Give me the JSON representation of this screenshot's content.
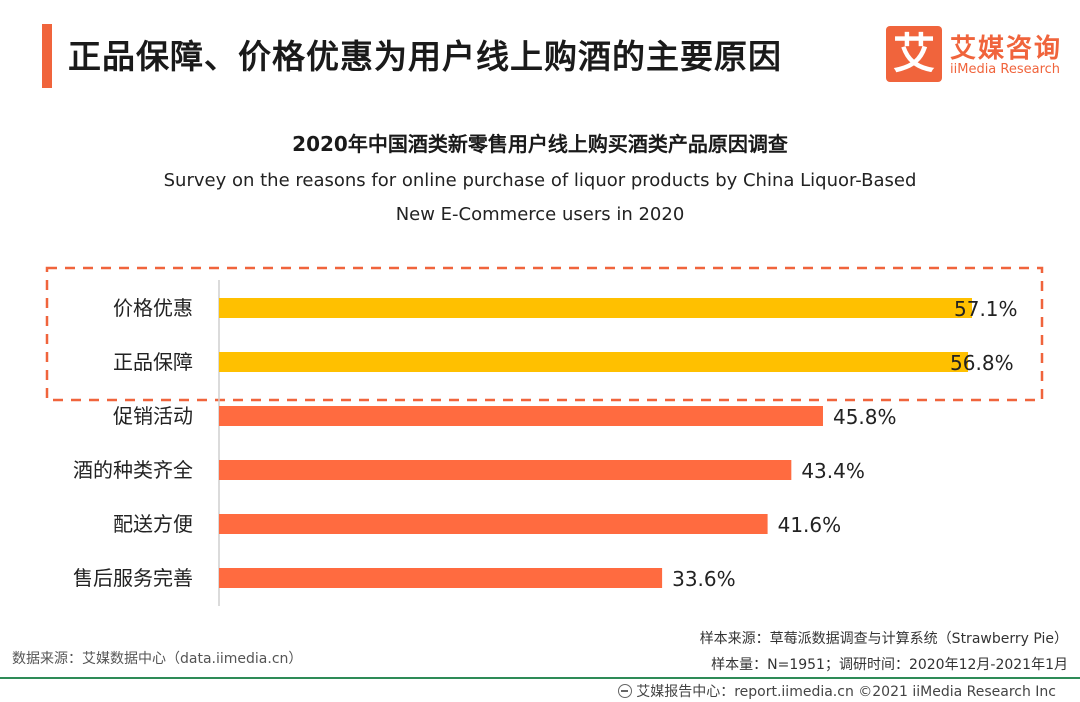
{
  "header": {
    "title": "正品保障、价格优惠为用户线上购酒的主要原因",
    "logo_mark": "艾",
    "logo_cn": "艾媒咨询",
    "logo_en": "iiMedia Research"
  },
  "colors": {
    "accent": "#f0643c",
    "highlight_bar": "#ffc000",
    "bar": "#ff6b40",
    "dash_border": "#f0643c",
    "footer_line": "#2e8b57"
  },
  "chart_data": {
    "type": "bar",
    "orientation": "horizontal",
    "title": "2020年中国酒类新零售用户线上购买酒类产品原因调查",
    "subtitle_en": [
      "Survey on the reasons for online purchase of liquor products by China Liquor-Based",
      "New E-Commerce users in 2020"
    ],
    "categories": [
      "价格优惠",
      "正品保障",
      "促销活动",
      "酒的种类齐全",
      "配送方便",
      "售后服务完善"
    ],
    "values": [
      57.1,
      56.8,
      45.8,
      43.4,
      41.6,
      33.6
    ],
    "value_labels": [
      "57.1%",
      "56.8%",
      "45.8%",
      "43.4%",
      "41.6%",
      "33.6%"
    ],
    "highlighted": [
      true,
      true,
      false,
      false,
      false,
      false
    ],
    "xlim": [
      0,
      57.1
    ],
    "unit": "%"
  },
  "source": {
    "left": "数据来源：艾媒数据中心（data.iimedia.cn）",
    "right1": "样本来源：草莓派数据调查与计算系统（Strawberry Pie）",
    "right2": "样本量：N=1951；调研时间：2020年12月-2021年1月"
  },
  "footer": {
    "text": "艾媒报告中心：report.iimedia.cn  ©2021  iiMedia Research  Inc"
  }
}
